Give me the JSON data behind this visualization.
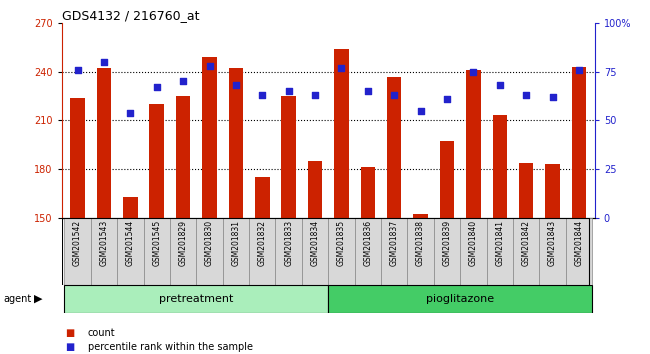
{
  "title": "GDS4132 / 216760_at",
  "categories": [
    "GSM201542",
    "GSM201543",
    "GSM201544",
    "GSM201545",
    "GSM201829",
    "GSM201830",
    "GSM201831",
    "GSM201832",
    "GSM201833",
    "GSM201834",
    "GSM201835",
    "GSM201836",
    "GSM201837",
    "GSM201838",
    "GSM201839",
    "GSM201840",
    "GSM201841",
    "GSM201842",
    "GSM201843",
    "GSM201844"
  ],
  "bar_values": [
    224,
    242,
    163,
    220,
    225,
    249,
    242,
    175,
    225,
    185,
    254,
    181,
    237,
    152,
    197,
    241,
    213,
    184,
    183,
    243
  ],
  "percentile_values": [
    76,
    80,
    54,
    67,
    70,
    78,
    68,
    63,
    65,
    63,
    77,
    65,
    63,
    55,
    61,
    75,
    68,
    63,
    62,
    76
  ],
  "ylim_left": [
    150,
    270
  ],
  "ylim_right": [
    0,
    100
  ],
  "yticks_left": [
    150,
    180,
    210,
    240,
    270
  ],
  "yticks_right": [
    0,
    25,
    50,
    75,
    100
  ],
  "bar_color": "#cc2200",
  "scatter_color": "#2222cc",
  "pretreatment_color": "#aaeebb",
  "pioglitazone_color": "#44cc66",
  "legend_count_label": "count",
  "legend_percentile_label": "percentile rank within the sample",
  "agent_label": "agent",
  "pretreatment_label": "pretreatment",
  "pioglitazone_label": "pioglitazone",
  "n_pretreatment": 10,
  "n_pioglitazone": 10
}
